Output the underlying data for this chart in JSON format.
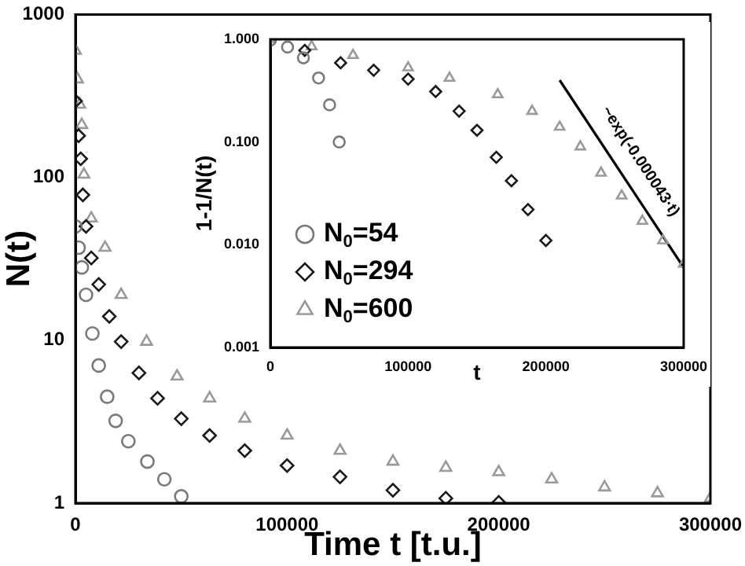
{
  "chart_data": [
    {
      "type": "scatter",
      "xlabel": "Time t [t.u.]",
      "ylabel": "N(t)",
      "log": "y",
      "xlim": [
        0,
        300000
      ],
      "ylim": [
        1,
        1000
      ],
      "xticks": [
        0,
        100000,
        200000,
        300000
      ],
      "yticks": [
        1,
        10,
        100,
        1000
      ],
      "grid": false,
      "legend": false,
      "series": [
        {
          "color": "#7a7a7a",
          "marker": "circle",
          "x": [
            0,
            1500,
            3000,
            5000,
            8000,
            11000,
            15000,
            19000,
            25000,
            34000,
            42000,
            50000
          ],
          "values": [
            50,
            37,
            28,
            19,
            11,
            7,
            4.5,
            3.2,
            2.4,
            1.8,
            1.4,
            1.1
          ]
        },
        {
          "color": "#1a1a1a",
          "marker": "diamond",
          "x": [
            0,
            1500,
            2500,
            3500,
            5000,
            7500,
            11000,
            16000,
            21600,
            30000,
            38800,
            50000,
            63400,
            80000,
            100000,
            125000,
            150000,
            175000,
            200000
          ],
          "values": [
            294,
            180,
            130,
            78,
            50,
            32,
            22,
            14,
            9.8,
            6.3,
            4.4,
            3.3,
            2.6,
            2.1,
            1.7,
            1.45,
            1.2,
            1.07,
            1.01
          ]
        },
        {
          "color": "#9a9a9a",
          "marker": "triangle",
          "x": [
            0,
            1000,
            2000,
            3000,
            4000,
            7500,
            14000,
            21600,
            33600,
            48000,
            63400,
            80000,
            100000,
            125000,
            150000,
            175000,
            200000,
            225000,
            250000,
            275000,
            300000
          ],
          "values": [
            600,
            400,
            280,
            210,
            104,
            56,
            37,
            19,
            9.8,
            6,
            4.4,
            3.3,
            2.6,
            2.1,
            1.8,
            1.65,
            1.55,
            1.4,
            1.25,
            1.15,
            1.07
          ]
        }
      ]
    },
    {
      "type": "scatter",
      "xlabel": "t",
      "ylabel": "1-1/N(t)",
      "log": "y",
      "xlim": [
        0,
        300000
      ],
      "ylim": [
        0.001,
        1
      ],
      "xticks": [
        0,
        100000,
        200000,
        300000
      ],
      "yticks": [
        {
          "value": 0.001,
          "label": "0.001"
        },
        {
          "value": 0.01,
          "label": "0.010"
        },
        {
          "value": 0.1,
          "label": "0.100"
        },
        {
          "value": 1,
          "label": "1.000"
        }
      ],
      "grid": false,
      "legend": "bottom left",
      "annotations": [
        "~exp(-0.000043·t)"
      ],
      "series": [
        {
          "name": "N$_{0}$=54",
          "color": "#7a7a7a",
          "marker": "circle",
          "x": [
            0,
            12500,
            24000,
            35000,
            43000,
            50000
          ],
          "values": [
            0.98,
            0.84,
            0.66,
            0.42,
            0.23,
            0.1
          ]
        },
        {
          "name": "N$_{0}$=294",
          "color": "#1a1a1a",
          "marker": "diamond",
          "x": [
            25000,
            51000,
            75000,
            100000,
            120000,
            137000,
            150000,
            164000,
            175000,
            187000,
            200000
          ],
          "values": [
            0.78,
            0.59,
            0.5,
            0.41,
            0.31,
            0.2,
            0.13,
            0.071,
            0.042,
            0.022,
            0.011
          ]
        },
        {
          "name": "N$_{0}$=600",
          "color": "#9a9a9a",
          "marker": "triangle",
          "x": [
            0,
            30000,
            60000,
            100000,
            130000,
            165000,
            190000,
            210000,
            225000,
            240000,
            255000,
            270000,
            285000,
            300000
          ],
          "values": [
            1,
            0.85,
            0.7,
            0.53,
            0.42,
            0.29,
            0.2,
            0.14,
            0.09,
            0.05,
            0.03,
            0.017,
            0.011,
            0.0065
          ]
        },
        {
          "type": "line",
          "color": "#000000",
          "marker": "none",
          "x": [
            210000,
            300000
          ],
          "values": [
            0.4,
            0.006
          ]
        }
      ]
    }
  ]
}
